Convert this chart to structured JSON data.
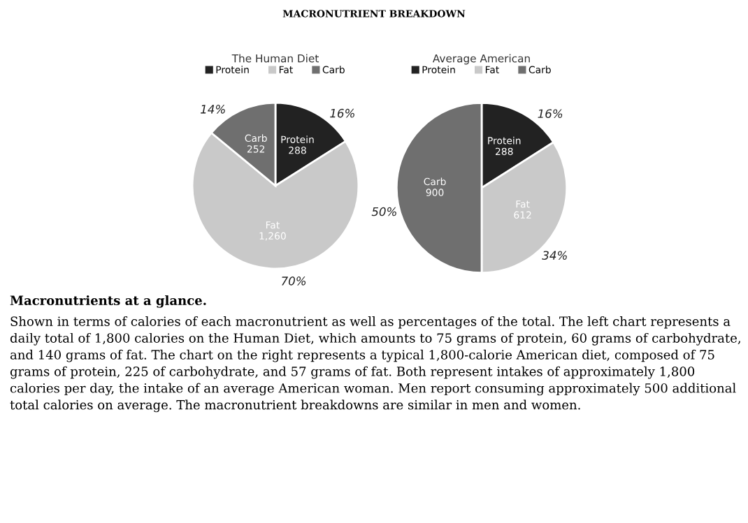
{
  "chart_data": [
    {
      "type": "other",
      "title": "MACRONUTRIENT BREAKDOWN"
    },
    {
      "type": "pie",
      "title": "The Human Diet",
      "categories": [
        "Protein",
        "Fat",
        "Carb"
      ],
      "values": [
        288,
        1260,
        252
      ],
      "value_labels": [
        "288",
        "1,260",
        "252"
      ],
      "colors": [
        "#222222",
        "#c9c9c9",
        "#6f6f6f"
      ],
      "legend": "top",
      "annotations": [
        "16%",
        "70%",
        "14%"
      ]
    },
    {
      "type": "pie",
      "title": "Average American",
      "categories": [
        "Protein",
        "Fat",
        "Carb"
      ],
      "values": [
        288,
        612,
        900
      ],
      "value_labels": [
        "288",
        "612",
        "900"
      ],
      "colors": [
        "#222222",
        "#c9c9c9",
        "#6f6f6f"
      ],
      "legend": "top",
      "annotations": [
        "16%",
        "34%",
        "50%"
      ]
    },
    {
      "type": "other",
      "annotations": [
        "Macronutrients at a glance.",
        "Shown in terms of calories of each macronutrient as well as percentages of the total. The left chart represents a daily total of 1,800 calories on the Human Diet, which amounts to 75 grams of protein, 60 grams of carbohydrate, and 140 grams of fat. The chart on the right represents a typical 1,800-calorie American diet, composed of 75 grams of protein, 225 of carbohydrate, and 57 grams of fat. Both represent intakes of approximately 1,800 calories per day, the intake of an average American woman. Men report consuming approximately 500 additional total calories on average. The macronutrient breakdowns are similar in men and women."
      ]
    }
  ]
}
